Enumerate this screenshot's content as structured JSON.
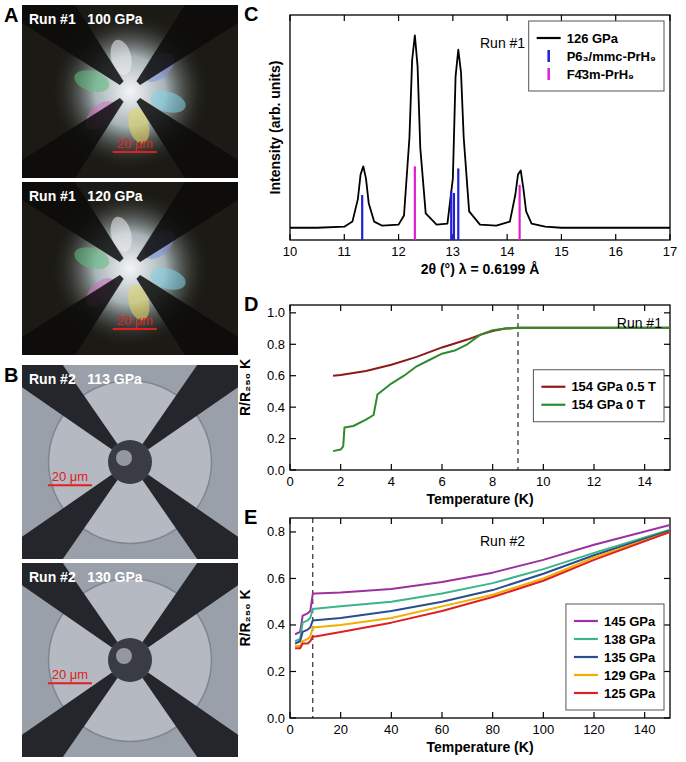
{
  "images": [
    {
      "panel": "A",
      "photos": [
        {
          "label": "Run #1   100 GPa",
          "scale_bar": "20 μm"
        },
        {
          "label": "Run #1   120 GPa",
          "scale_bar": "20 μm"
        }
      ]
    },
    {
      "panel": "B",
      "photos": [
        {
          "label": "Run #2   113 GPa",
          "scale_bar": "20 μm"
        },
        {
          "label": "Run #2   130 GPa",
          "scale_bar": "20 μm"
        }
      ]
    }
  ],
  "chart_data": [
    {
      "panel": "C",
      "type": "line",
      "annotation": "Run #1",
      "x_label": "2θ (°) λ = 0.6199 Å",
      "y_label": "Intensity (arb. units)",
      "xlim": [
        10,
        17
      ],
      "xticks": [
        10,
        11,
        12,
        13,
        14,
        15,
        16,
        17
      ],
      "ylim": [
        0,
        1.1
      ],
      "yticks": [],
      "tick_labels": "x",
      "legend": "top-right",
      "series": [
        {
          "name": "126 GPa",
          "type": "line",
          "color": "#000000",
          "x": [
            10,
            10.5,
            11.0,
            11.15,
            11.25,
            11.3,
            11.35,
            11.4,
            11.45,
            11.55,
            11.7,
            12.0,
            12.1,
            12.2,
            12.25,
            12.3,
            12.35,
            12.4,
            12.5,
            12.7,
            12.9,
            13.0,
            13.05,
            13.1,
            13.15,
            13.2,
            13.3,
            13.5,
            13.8,
            14.05,
            14.15,
            14.2,
            14.25,
            14.3,
            14.35,
            14.45,
            14.7,
            15.0,
            15.5,
            16.0,
            16.5,
            17.0
          ],
          "values": [
            0.06,
            0.06,
            0.065,
            0.09,
            0.2,
            0.32,
            0.36,
            0.3,
            0.18,
            0.09,
            0.07,
            0.075,
            0.12,
            0.5,
            0.88,
            1.0,
            0.85,
            0.45,
            0.13,
            0.075,
            0.08,
            0.3,
            0.8,
            0.93,
            0.82,
            0.5,
            0.14,
            0.075,
            0.07,
            0.09,
            0.22,
            0.32,
            0.34,
            0.25,
            0.14,
            0.08,
            0.065,
            0.06,
            0.06,
            0.06,
            0.06,
            0.06
          ]
        },
        {
          "name": "P6₃/mmc-PrH₉",
          "type": "stick",
          "color": "#1f1fd6",
          "x": [
            11.33,
            12.97,
            13.02,
            13.1
          ],
          "values": [
            0.22,
            0.24,
            0.23,
            0.35
          ]
        },
        {
          "name": "F4̄3m-PrH₉",
          "type": "stick",
          "color": "#e020d0",
          "x": [
            12.3,
            14.23
          ],
          "values": [
            0.36,
            0.27
          ]
        }
      ]
    },
    {
      "panel": "D",
      "type": "line",
      "annotation": "Run #1",
      "x_label": "Temperature (K)",
      "y_label": "R/R₂₅₀ K",
      "xlim": [
        0,
        15
      ],
      "xticks": [
        0,
        2,
        4,
        6,
        8,
        10,
        12,
        14
      ],
      "ylim": [
        0,
        1.05
      ],
      "yticks": [
        {
          "value": 0,
          "label": "0.0"
        },
        0.2,
        0.4,
        0.6,
        0.8,
        {
          "value": 1,
          "label": "1.0"
        }
      ],
      "vline": 9,
      "legend": "right",
      "series": [
        {
          "name": "154 GPa 0.5 T",
          "color": "#8b1a1a",
          "x": [
            1.7,
            2,
            3,
            4,
            5,
            6,
            7,
            7.5,
            8,
            8.5,
            9,
            10,
            12,
            15
          ],
          "values": [
            0.6,
            0.605,
            0.63,
            0.67,
            0.72,
            0.78,
            0.83,
            0.86,
            0.885,
            0.9,
            0.905,
            0.905,
            0.905,
            0.905
          ]
        },
        {
          "name": "154 GPa 0 T",
          "color": "#2e8b2e",
          "x": [
            1.7,
            2.0,
            2.1,
            2.15,
            2.5,
            3.0,
            3.3,
            3.45,
            3.6,
            4,
            4.5,
            5,
            5.5,
            6,
            6.5,
            7,
            7.5,
            8,
            8.5,
            9,
            10,
            12,
            15
          ],
          "values": [
            0.12,
            0.13,
            0.15,
            0.27,
            0.28,
            0.32,
            0.35,
            0.48,
            0.5,
            0.55,
            0.6,
            0.66,
            0.7,
            0.74,
            0.76,
            0.8,
            0.86,
            0.89,
            0.9,
            0.905,
            0.905,
            0.905,
            0.905
          ]
        }
      ]
    },
    {
      "panel": "E",
      "type": "line",
      "annotation": "Run #2",
      "x_label": "Temperature (K)",
      "y_label": "R/R₂₅₀ K",
      "xlim": [
        0,
        150
      ],
      "xticks": [
        0,
        20,
        40,
        60,
        80,
        100,
        120,
        140
      ],
      "ylim": [
        0,
        0.86
      ],
      "yticks": [
        {
          "value": 0,
          "label": "0.0"
        },
        0.2,
        0.4,
        0.6,
        0.8
      ],
      "vline": 9,
      "legend": "bottom-right",
      "x": [
        2,
        4,
        5,
        7,
        8,
        9,
        10,
        20,
        40,
        60,
        80,
        100,
        120,
        150
      ],
      "series": [
        {
          "name": "145 GPa",
          "color": "#9b30a0",
          "values": [
            0.36,
            0.37,
            0.44,
            0.45,
            0.46,
            0.535,
            0.535,
            0.54,
            0.555,
            0.585,
            0.625,
            0.68,
            0.745,
            0.83
          ]
        },
        {
          "name": "138 GPa",
          "color": "#3cb38a",
          "values": [
            0.33,
            0.34,
            0.41,
            0.42,
            0.43,
            0.47,
            0.47,
            0.48,
            0.5,
            0.535,
            0.58,
            0.64,
            0.71,
            0.81
          ]
        },
        {
          "name": "135 GPa",
          "color": "#2a4d8f",
          "values": [
            0.32,
            0.33,
            0.37,
            0.38,
            0.39,
            0.42,
            0.42,
            0.43,
            0.46,
            0.5,
            0.55,
            0.62,
            0.7,
            0.805
          ]
        },
        {
          "name": "129 GPa",
          "color": "#f0b000",
          "values": [
            0.31,
            0.31,
            0.33,
            0.34,
            0.35,
            0.39,
            0.39,
            0.4,
            0.43,
            0.48,
            0.53,
            0.6,
            0.69,
            0.8
          ]
        },
        {
          "name": "125 GPa",
          "color": "#e02020",
          "values": [
            0.3,
            0.3,
            0.32,
            0.32,
            0.33,
            0.35,
            0.35,
            0.37,
            0.41,
            0.46,
            0.52,
            0.59,
            0.68,
            0.8
          ]
        }
      ]
    }
  ]
}
